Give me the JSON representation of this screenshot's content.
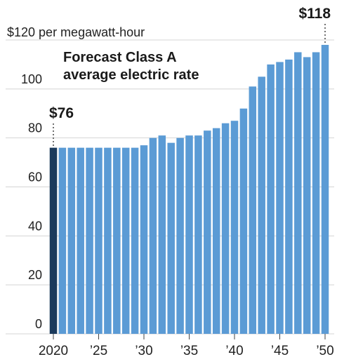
{
  "chart_data": {
    "type": "bar",
    "title_lines": [
      "Forecast Class A",
      "average electric rate"
    ],
    "y_unit_label": "$120 per megawatt-hour",
    "y_ticks": [
      0,
      20,
      40,
      60,
      80,
      100
    ],
    "ylim": [
      0,
      120
    ],
    "x": [
      2020,
      2021,
      2022,
      2023,
      2024,
      2025,
      2026,
      2027,
      2028,
      2029,
      2030,
      2031,
      2032,
      2033,
      2034,
      2035,
      2036,
      2037,
      2038,
      2039,
      2040,
      2041,
      2042,
      2043,
      2044,
      2045,
      2046,
      2047,
      2048,
      2049,
      2050
    ],
    "x_tick_labels": [
      {
        "x": 2020,
        "label": "2020"
      },
      {
        "x": 2025,
        "label": "’25"
      },
      {
        "x": 2030,
        "label": "’30"
      },
      {
        "x": 2035,
        "label": "’35"
      },
      {
        "x": 2040,
        "label": "’40"
      },
      {
        "x": 2045,
        "label": "’45"
      },
      {
        "x": 2050,
        "label": "’50"
      }
    ],
    "values": [
      76,
      76,
      76,
      76,
      76,
      76,
      76,
      76,
      76,
      76,
      77,
      80,
      81,
      78,
      80,
      81,
      81,
      83,
      84,
      86,
      87,
      92,
      101,
      105,
      110,
      111,
      112,
      115,
      113,
      115,
      118
    ],
    "highlight_x": 2020,
    "annotations": [
      {
        "x": 2020,
        "label": "$76"
      },
      {
        "x": 2050,
        "label": "$118"
      }
    ],
    "colors": {
      "bar": "#5b9bd5",
      "highlight": "#1b3a5c"
    },
    "grid": true
  }
}
